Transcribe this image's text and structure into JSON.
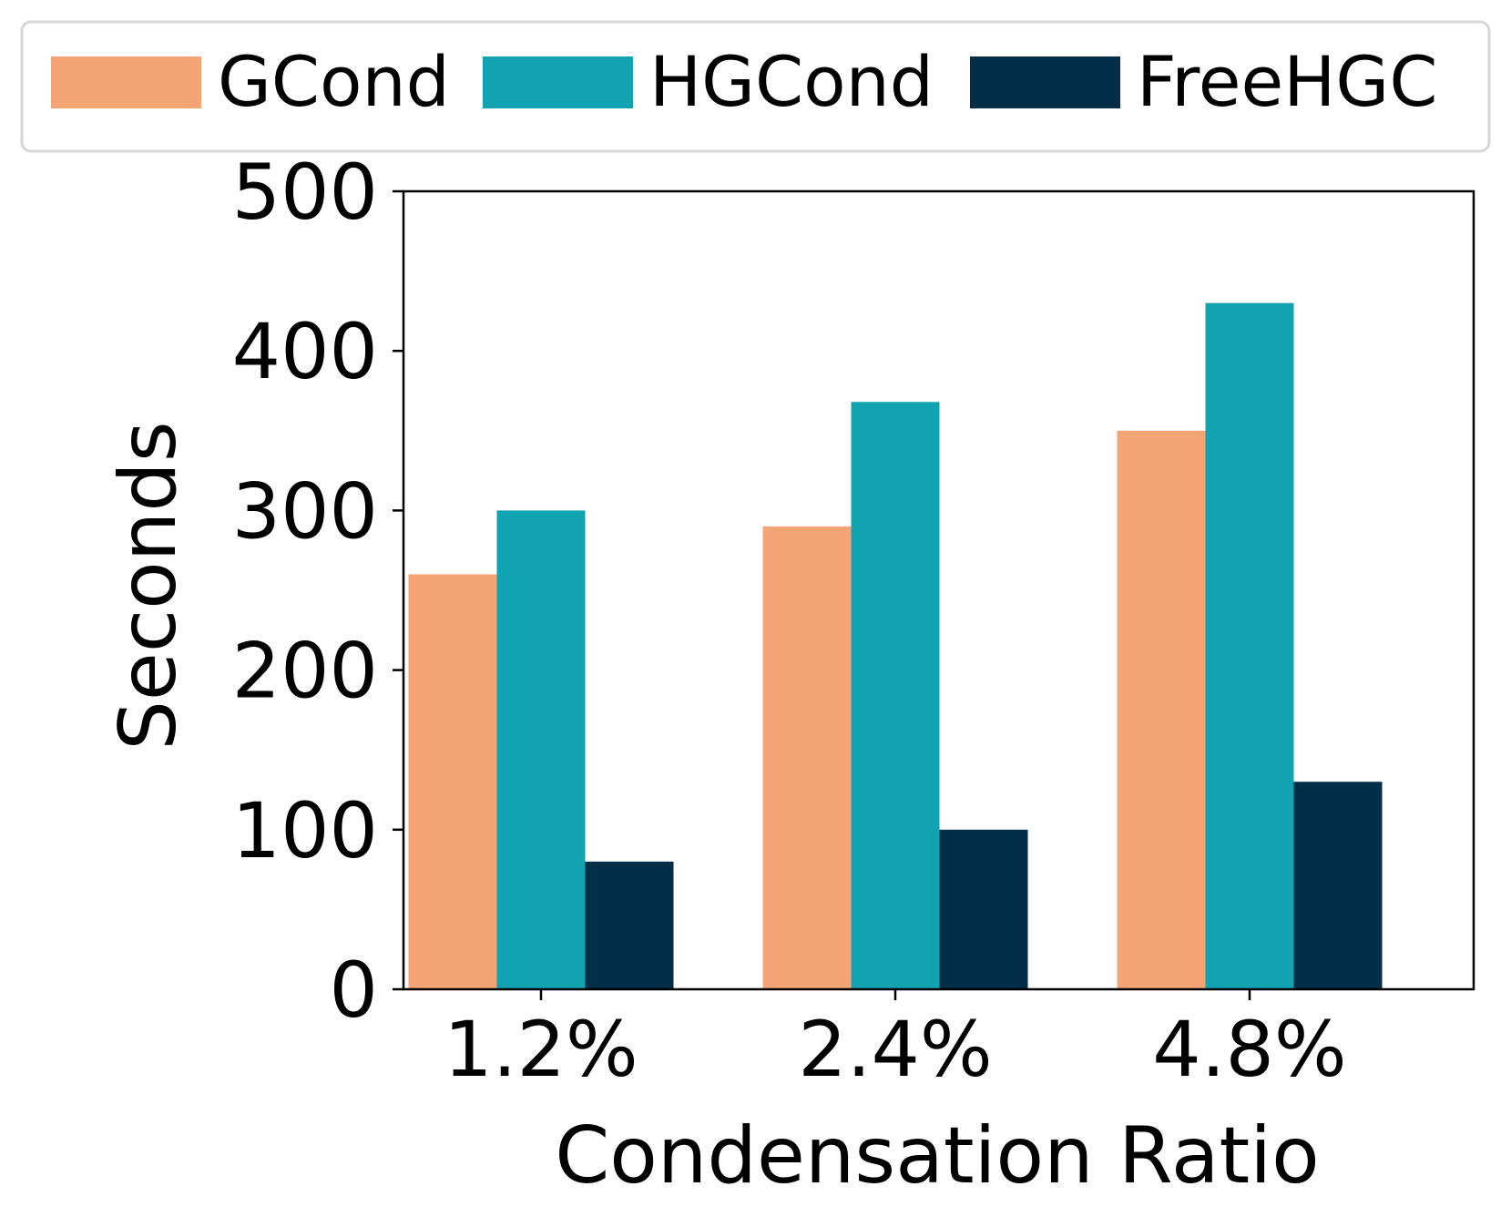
{
  "chart_data": {
    "type": "bar",
    "title": "",
    "xlabel": "Condensation Ratio",
    "ylabel": "Seconds",
    "categories": [
      "1.2%",
      "2.4%",
      "4.8%"
    ],
    "series": [
      {
        "name": "GCond",
        "color": "#F5A475",
        "values": [
          260,
          290,
          350
        ]
      },
      {
        "name": "HGCond",
        "color": "#11A3B2",
        "values": [
          300,
          368,
          430
        ]
      },
      {
        "name": "FreeHGC",
        "color": "#022F47",
        "values": [
          80,
          100,
          130
        ]
      }
    ],
    "ylim": [
      0,
      500
    ],
    "yticks": [
      0,
      100,
      200,
      300,
      400,
      500
    ],
    "grid": false,
    "legend_position": "top"
  }
}
